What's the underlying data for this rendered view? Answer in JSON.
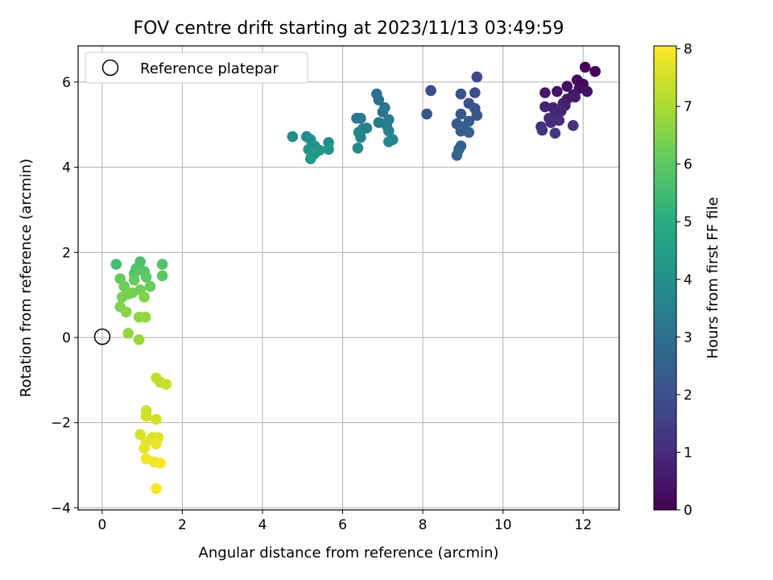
{
  "chart_data": {
    "type": "scatter",
    "title": "FOV centre drift starting at 2023/11/13 03:49:59",
    "xlabel": "Angular distance from reference (arcmin)",
    "ylabel": "Rotation from reference (arcmin)",
    "xlim": [
      -0.6,
      12.9
    ],
    "ylim": [
      -4.05,
      6.85
    ],
    "x_ticks": [
      0,
      2,
      4,
      6,
      8,
      10,
      12
    ],
    "y_ticks": [
      -4,
      -2,
      0,
      2,
      4,
      6
    ],
    "x_tick_labels": [
      "0",
      "2",
      "4",
      "6",
      "8",
      "10",
      "12"
    ],
    "y_tick_labels": [
      "−4",
      "−2",
      "0",
      "2",
      "4",
      "6"
    ],
    "grid": true,
    "legend": {
      "placement": "top-left",
      "entries": [
        "Reference platepar"
      ]
    },
    "reference": {
      "x": 0,
      "y": 0,
      "marker": "open circle"
    },
    "colorbar": {
      "label": "Hours from first FF file",
      "colormap": "viridis",
      "range": [
        0,
        8.05
      ],
      "ticks": [
        0,
        1,
        2,
        3,
        4,
        5,
        6,
        7,
        8
      ],
      "tick_labels": [
        "0",
        "1",
        "2",
        "3",
        "4",
        "5",
        "6",
        "7",
        "8"
      ]
    },
    "points": [
      {
        "x": 12.05,
        "y": 6.35,
        "c": 0.1
      },
      {
        "x": 12.3,
        "y": 6.25,
        "c": 0.1
      },
      {
        "x": 11.85,
        "y": 6.05,
        "c": 0.2
      },
      {
        "x": 12.0,
        "y": 5.95,
        "c": 0.2
      },
      {
        "x": 11.6,
        "y": 5.9,
        "c": 0.3
      },
      {
        "x": 11.9,
        "y": 5.85,
        "c": 0.3
      },
      {
        "x": 12.1,
        "y": 5.78,
        "c": 0.4
      },
      {
        "x": 11.35,
        "y": 5.78,
        "c": 0.4
      },
      {
        "x": 11.05,
        "y": 5.75,
        "c": 0.5
      },
      {
        "x": 11.75,
        "y": 5.7,
        "c": 0.5
      },
      {
        "x": 11.8,
        "y": 5.65,
        "c": 0.6
      },
      {
        "x": 11.6,
        "y": 5.6,
        "c": 0.6
      },
      {
        "x": 11.5,
        "y": 5.5,
        "c": 0.7
      },
      {
        "x": 11.55,
        "y": 5.45,
        "c": 0.7
      },
      {
        "x": 11.05,
        "y": 5.42,
        "c": 0.8
      },
      {
        "x": 11.25,
        "y": 5.4,
        "c": 0.8
      },
      {
        "x": 11.45,
        "y": 5.32,
        "c": 0.9
      },
      {
        "x": 11.3,
        "y": 5.25,
        "c": 0.9
      },
      {
        "x": 11.15,
        "y": 5.15,
        "c": 1.0
      },
      {
        "x": 11.4,
        "y": 5.1,
        "c": 1.0
      },
      {
        "x": 11.2,
        "y": 5.05,
        "c": 1.1
      },
      {
        "x": 10.95,
        "y": 4.95,
        "c": 1.1
      },
      {
        "x": 11.75,
        "y": 4.98,
        "c": 1.2
      },
      {
        "x": 10.98,
        "y": 4.87,
        "c": 1.2
      },
      {
        "x": 11.3,
        "y": 4.8,
        "c": 1.3
      },
      {
        "x": 9.35,
        "y": 6.12,
        "c": 1.8
      },
      {
        "x": 8.2,
        "y": 5.8,
        "c": 1.9
      },
      {
        "x": 9.3,
        "y": 5.75,
        "c": 1.9
      },
      {
        "x": 8.95,
        "y": 5.72,
        "c": 2.0
      },
      {
        "x": 9.15,
        "y": 5.5,
        "c": 2.0
      },
      {
        "x": 9.3,
        "y": 5.38,
        "c": 2.1
      },
      {
        "x": 8.1,
        "y": 5.25,
        "c": 2.1
      },
      {
        "x": 8.95,
        "y": 5.25,
        "c": 2.2
      },
      {
        "x": 9.35,
        "y": 5.22,
        "c": 2.2
      },
      {
        "x": 9.15,
        "y": 5.08,
        "c": 2.3
      },
      {
        "x": 8.85,
        "y": 5.02,
        "c": 2.3
      },
      {
        "x": 9.0,
        "y": 4.95,
        "c": 2.4
      },
      {
        "x": 8.95,
        "y": 4.85,
        "c": 2.4
      },
      {
        "x": 9.15,
        "y": 4.82,
        "c": 2.5
      },
      {
        "x": 8.95,
        "y": 4.5,
        "c": 2.5
      },
      {
        "x": 8.9,
        "y": 4.42,
        "c": 2.6
      },
      {
        "x": 8.85,
        "y": 4.28,
        "c": 2.6
      },
      {
        "x": 6.85,
        "y": 5.72,
        "c": 3.0
      },
      {
        "x": 6.9,
        "y": 5.58,
        "c": 3.0
      },
      {
        "x": 7.05,
        "y": 5.4,
        "c": 3.1
      },
      {
        "x": 7.0,
        "y": 5.3,
        "c": 3.1
      },
      {
        "x": 6.35,
        "y": 5.15,
        "c": 3.2
      },
      {
        "x": 6.45,
        "y": 5.15,
        "c": 3.2
      },
      {
        "x": 7.15,
        "y": 5.12,
        "c": 3.3
      },
      {
        "x": 6.9,
        "y": 5.05,
        "c": 3.3
      },
      {
        "x": 7.1,
        "y": 4.98,
        "c": 3.4
      },
      {
        "x": 6.6,
        "y": 4.92,
        "c": 3.4
      },
      {
        "x": 6.5,
        "y": 4.9,
        "c": 3.5
      },
      {
        "x": 7.15,
        "y": 4.85,
        "c": 3.5
      },
      {
        "x": 6.4,
        "y": 4.82,
        "c": 3.6
      },
      {
        "x": 6.45,
        "y": 4.7,
        "c": 3.6
      },
      {
        "x": 7.25,
        "y": 4.65,
        "c": 3.7
      },
      {
        "x": 7.15,
        "y": 4.6,
        "c": 3.7
      },
      {
        "x": 6.38,
        "y": 4.45,
        "c": 3.8
      },
      {
        "x": 4.75,
        "y": 4.72,
        "c": 3.9
      },
      {
        "x": 5.1,
        "y": 4.72,
        "c": 3.9
      },
      {
        "x": 5.2,
        "y": 4.65,
        "c": 4.0
      },
      {
        "x": 5.65,
        "y": 4.58,
        "c": 4.0
      },
      {
        "x": 5.3,
        "y": 4.5,
        "c": 4.1
      },
      {
        "x": 5.15,
        "y": 4.42,
        "c": 4.1
      },
      {
        "x": 5.42,
        "y": 4.4,
        "c": 4.2
      },
      {
        "x": 5.65,
        "y": 4.42,
        "c": 4.2
      },
      {
        "x": 5.3,
        "y": 4.32,
        "c": 4.3
      },
      {
        "x": 5.2,
        "y": 4.2,
        "c": 4.3
      },
      {
        "x": 0.35,
        "y": 1.72,
        "c": 5.6
      },
      {
        "x": 0.95,
        "y": 1.78,
        "c": 5.7
      },
      {
        "x": 1.5,
        "y": 1.72,
        "c": 5.8
      },
      {
        "x": 0.85,
        "y": 1.62,
        "c": 5.8
      },
      {
        "x": 1.05,
        "y": 1.55,
        "c": 5.9
      },
      {
        "x": 0.8,
        "y": 1.5,
        "c": 5.9
      },
      {
        "x": 1.5,
        "y": 1.45,
        "c": 6.0
      },
      {
        "x": 1.1,
        "y": 1.42,
        "c": 6.0
      },
      {
        "x": 0.45,
        "y": 1.38,
        "c": 6.1
      },
      {
        "x": 0.8,
        "y": 1.35,
        "c": 6.1
      },
      {
        "x": 1.2,
        "y": 1.2,
        "c": 6.2
      },
      {
        "x": 0.55,
        "y": 1.2,
        "c": 6.2
      },
      {
        "x": 0.95,
        "y": 1.12,
        "c": 6.3
      },
      {
        "x": 0.75,
        "y": 1.05,
        "c": 6.3
      },
      {
        "x": 0.65,
        "y": 1.02,
        "c": 6.4
      },
      {
        "x": 0.5,
        "y": 0.95,
        "c": 6.4
      },
      {
        "x": 1.05,
        "y": 0.95,
        "c": 6.5
      },
      {
        "x": 0.45,
        "y": 0.72,
        "c": 6.5
      },
      {
        "x": 0.6,
        "y": 0.6,
        "c": 6.6
      },
      {
        "x": 0.92,
        "y": 0.48,
        "c": 6.6
      },
      {
        "x": 1.08,
        "y": 0.48,
        "c": 6.7
      },
      {
        "x": 0.65,
        "y": 0.1,
        "c": 6.7
      },
      {
        "x": 0.92,
        "y": -0.05,
        "c": 6.8
      },
      {
        "x": 1.35,
        "y": -0.95,
        "c": 7.3
      },
      {
        "x": 1.45,
        "y": -1.05,
        "c": 7.3
      },
      {
        "x": 1.6,
        "y": -1.1,
        "c": 7.4
      },
      {
        "x": 1.1,
        "y": -1.72,
        "c": 7.4
      },
      {
        "x": 1.1,
        "y": -1.85,
        "c": 7.5
      },
      {
        "x": 1.35,
        "y": -1.92,
        "c": 7.5
      },
      {
        "x": 0.95,
        "y": -2.28,
        "c": 7.6
      },
      {
        "x": 1.25,
        "y": -2.35,
        "c": 7.6
      },
      {
        "x": 1.4,
        "y": -2.35,
        "c": 7.7
      },
      {
        "x": 1.1,
        "y": -2.45,
        "c": 7.7
      },
      {
        "x": 1.35,
        "y": -2.5,
        "c": 7.8
      },
      {
        "x": 1.05,
        "y": -2.6,
        "c": 7.8
      },
      {
        "x": 1.1,
        "y": -2.85,
        "c": 7.9
      },
      {
        "x": 1.3,
        "y": -2.92,
        "c": 7.9
      },
      {
        "x": 1.45,
        "y": -2.95,
        "c": 8.0
      },
      {
        "x": 1.35,
        "y": -3.55,
        "c": 8.0
      }
    ]
  }
}
